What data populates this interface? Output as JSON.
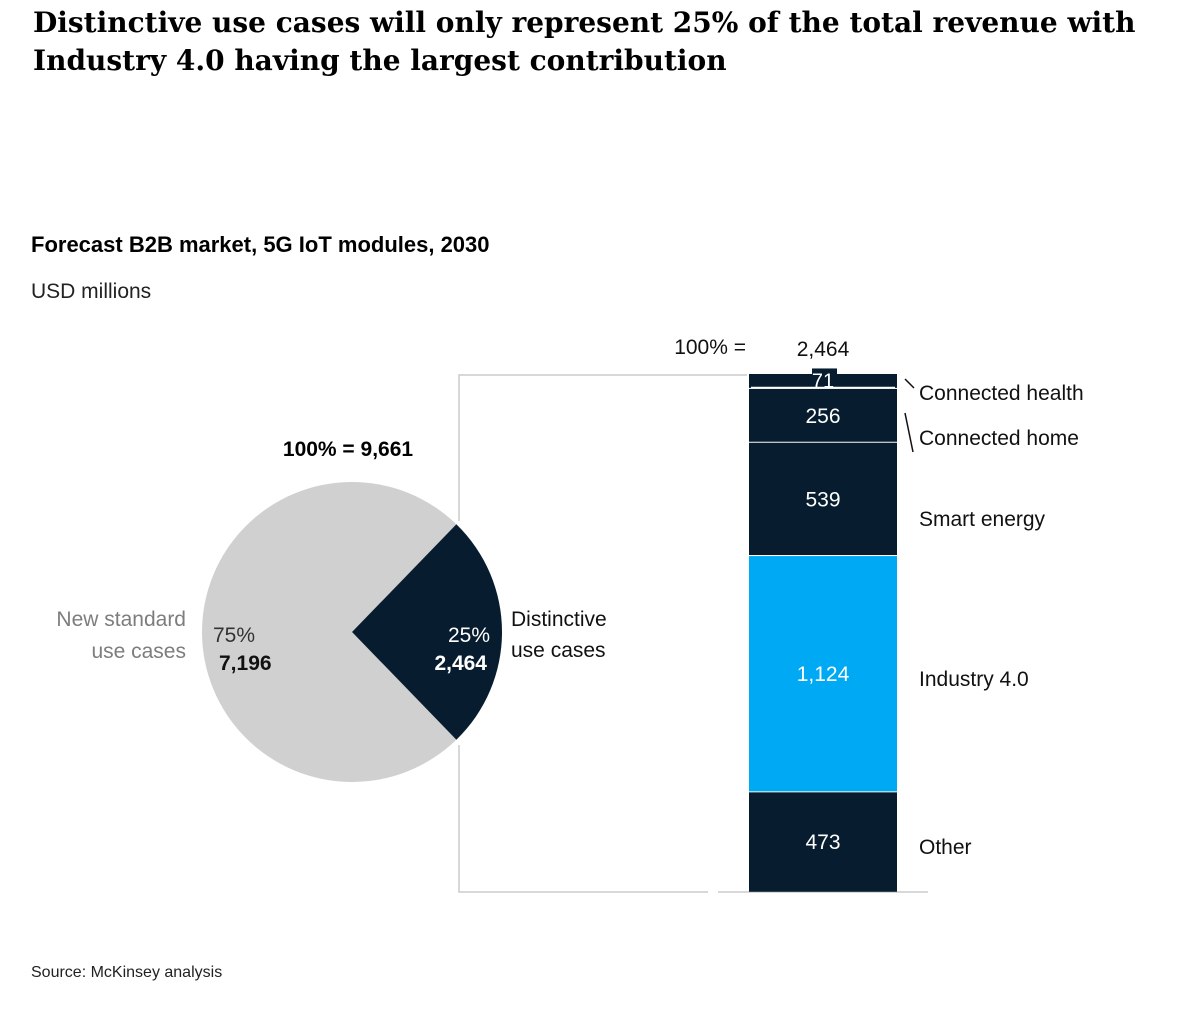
{
  "headline": "Distinctive use cases will only represent 25% of the total revenue with Industry 4.0 having the largest contribution",
  "source": "Source: McKinsey analysis",
  "colors": {
    "navy": "#071d2f",
    "grey": "#d0d0d0",
    "blue": "#00a9f4",
    "line": "#cccccc"
  },
  "chart_data": [
    {
      "type": "pie",
      "title": "Forecast B2B market, 5G IoT modules, 2030",
      "units": "USD millions",
      "total_label": "100% = 9,661",
      "total": 9661,
      "slices": [
        {
          "name": "New standard use cases",
          "name_lines": [
            "New standard",
            "use cases"
          ],
          "percent": "75%",
          "value": 7196,
          "value_label": "7,196"
        },
        {
          "name": "Distinctive use cases",
          "name_lines": [
            "Distinctive",
            "use cases"
          ],
          "percent": "25%",
          "value": 2464,
          "value_label": "2,464"
        }
      ]
    },
    {
      "type": "bar",
      "stacked": true,
      "total_prefix": "100% =",
      "total_label": "2,464",
      "total": 2464,
      "segments": [
        {
          "name": "Connected health",
          "value": 71,
          "value_label": "71"
        },
        {
          "name": "Connected home",
          "value": 256,
          "value_label": "256"
        },
        {
          "name": "Smart energy",
          "value": 539,
          "value_label": "539"
        },
        {
          "name": "Industry 4.0",
          "value": 1124,
          "value_label": "1,124"
        },
        {
          "name": "Other",
          "value": 473,
          "value_label": "473"
        }
      ]
    }
  ]
}
